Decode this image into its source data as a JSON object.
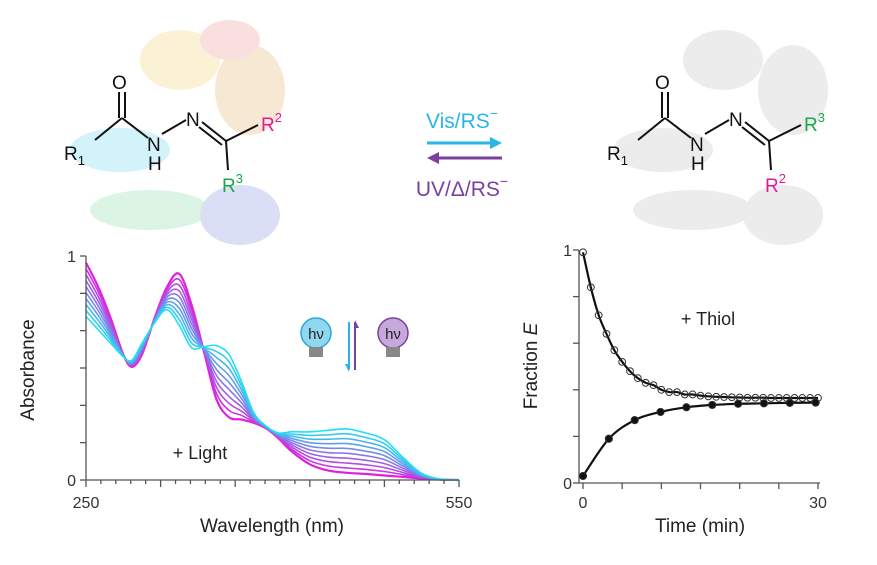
{
  "scheme": {
    "left_molecule": {
      "r1": "R",
      "r1_sub": "1",
      "o": "O",
      "n": "N",
      "nh_n": "N",
      "nh_h": "H",
      "r2": "R",
      "r2_sup": "2",
      "r3": "R",
      "r3_sup": "3"
    },
    "right_molecule": {
      "r1": "R",
      "r1_sub": "1",
      "o": "O",
      "n": "N",
      "nh_n": "N",
      "nh_h": "H",
      "r2": "R",
      "r2_sup": "2",
      "r3": "R",
      "r3_sup": "3"
    },
    "forward_label": "Vis/RS",
    "forward_sup": "−",
    "reverse_label": "UV/Δ/RS",
    "reverse_sup": "−",
    "colors": {
      "forward": "#29b6e6",
      "reverse": "#7b3fa0",
      "r2": "#e6189a",
      "r3": "#1aa84a"
    }
  },
  "chart_data": [
    {
      "type": "line",
      "xlabel": "Wavelength (nm)",
      "ylabel": "Absorbance",
      "xlim": [
        250,
        550
      ],
      "ylim": [
        0,
        1
      ],
      "x_tick_labels": [
        "250",
        "550"
      ],
      "y_tick_labels": [
        "0",
        "1"
      ],
      "annotation": "+ Light",
      "bulb_labels": [
        "hν",
        "hν"
      ],
      "curve_count": 10,
      "colors": {
        "start": "#e020e0",
        "end": "#20e0f0"
      },
      "x": [
        250,
        260,
        270,
        280,
        287,
        295,
        305,
        315,
        325,
        335,
        345,
        355,
        365,
        375,
        385,
        395,
        405,
        415,
        430,
        445,
        460,
        475,
        490,
        505,
        520,
        535,
        550
      ],
      "series": [
        {
          "values": [
            0.97,
            0.86,
            0.72,
            0.56,
            0.505,
            0.56,
            0.72,
            0.86,
            0.92,
            0.78,
            0.57,
            0.36,
            0.28,
            0.27,
            0.255,
            0.23,
            0.185,
            0.13,
            0.07,
            0.042,
            0.032,
            0.027,
            0.02,
            0.014,
            0.006,
            0.002,
            0
          ]
        },
        {
          "values": [
            0.73,
            0.67,
            0.61,
            0.55,
            0.535,
            0.61,
            0.7,
            0.76,
            0.69,
            0.59,
            0.595,
            0.6,
            0.56,
            0.44,
            0.3,
            0.24,
            0.21,
            0.215,
            0.215,
            0.222,
            0.228,
            0.21,
            0.18,
            0.1,
            0.03,
            0.004,
            0
          ]
        }
      ]
    },
    {
      "type": "scatter",
      "xlabel": "Time (min)",
      "ylabel": "Fraction ",
      "ylabel_italic": "E",
      "xlim": [
        0,
        30
      ],
      "ylim": [
        0,
        1
      ],
      "x_tick_labels": [
        "0",
        "30"
      ],
      "y_tick_labels": [
        "0",
        "1"
      ],
      "annotation": "+ Thiol",
      "series": [
        {
          "marker": "open-circle",
          "x": [
            0,
            1,
            2,
            3,
            4,
            5,
            6,
            7,
            8,
            9,
            10,
            11,
            12,
            13,
            14,
            15,
            16,
            17,
            18,
            19,
            20,
            21,
            22,
            23,
            24,
            25,
            26,
            27,
            28,
            29,
            30
          ],
          "values": [
            0.99,
            0.84,
            0.72,
            0.64,
            0.57,
            0.52,
            0.48,
            0.45,
            0.43,
            0.42,
            0.4,
            0.39,
            0.39,
            0.38,
            0.38,
            0.375,
            0.372,
            0.37,
            0.369,
            0.368,
            0.367,
            0.366,
            0.366,
            0.366,
            0.365,
            0.365,
            0.365,
            0.365,
            0.365,
            0.365,
            0.365
          ]
        },
        {
          "marker": "filled-circle",
          "x": [
            0,
            3.3,
            6.6,
            9.9,
            13.2,
            16.5,
            19.8,
            23.1,
            26.4,
            29.7
          ],
          "values": [
            0.03,
            0.19,
            0.27,
            0.305,
            0.325,
            0.335,
            0.34,
            0.342,
            0.344,
            0.345
          ]
        }
      ]
    }
  ]
}
